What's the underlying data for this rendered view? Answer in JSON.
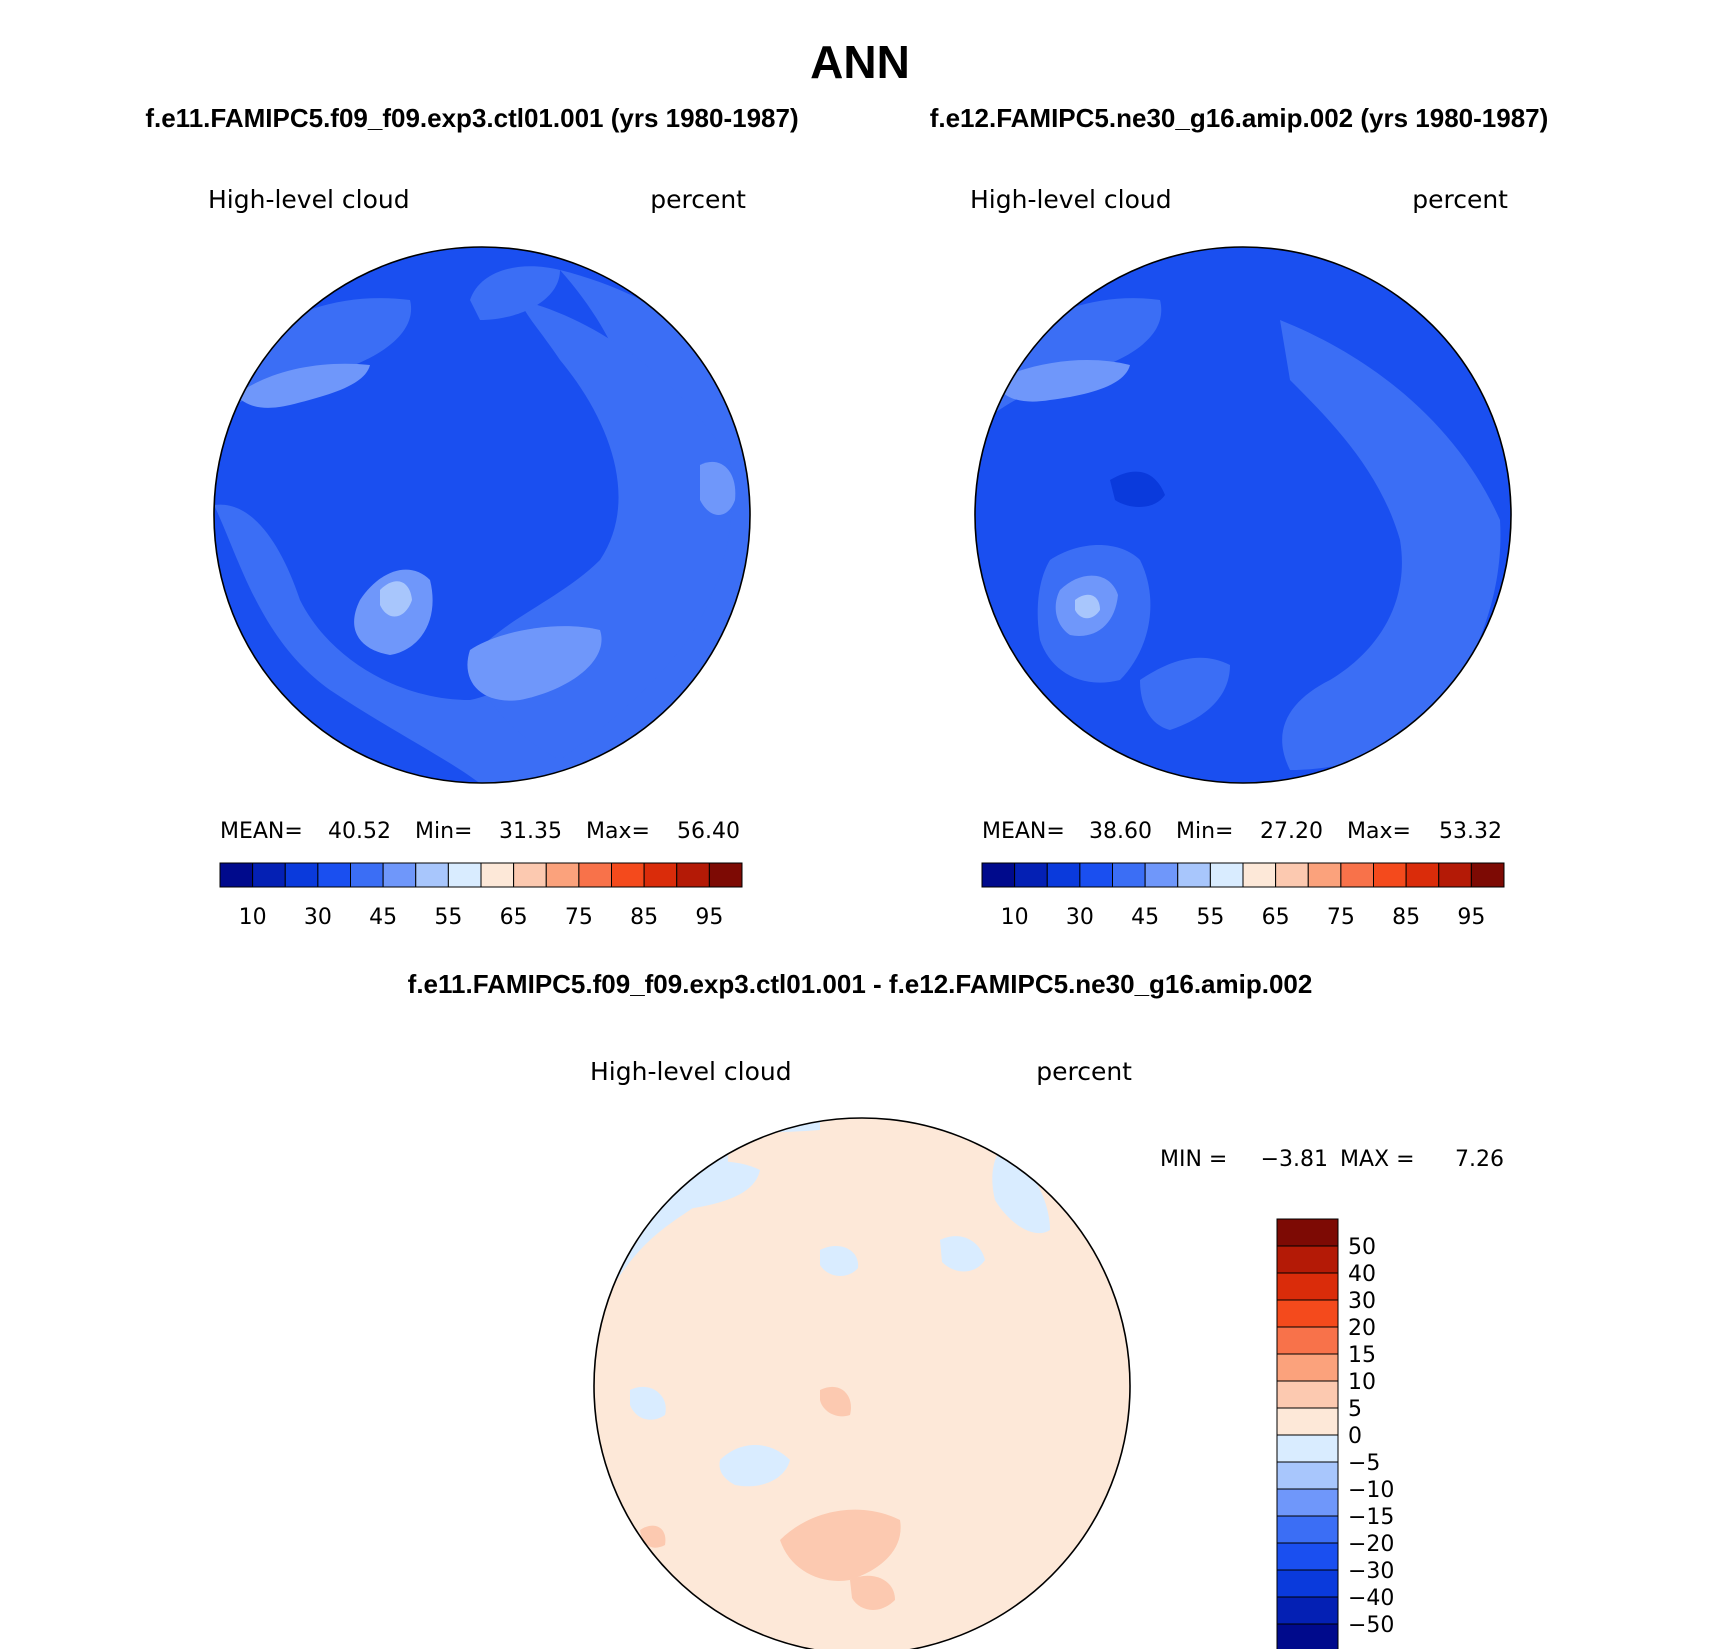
{
  "figure": {
    "title": "ANN",
    "left_caption": "f.e11.FAMIPC5.f09_f09.exp3.ctl01.001 (yrs 1980-1987)",
    "right_caption": "f.e12.FAMIPC5.ne30_g16.amip.002 (yrs 1980-1987)",
    "diff_caption": "f.e11.FAMIPC5.f09_f09.exp3.ctl01.001 - f.e12.FAMIPC5.ne30_g16.amip.002"
  },
  "chart_data": [
    {
      "type": "heatmap",
      "projection": "north polar stereographic",
      "variable": "High-level cloud",
      "units": "percent",
      "stats": {
        "mean_label": "MEAN=",
        "mean": "40.52",
        "min_label": "Min=",
        "min": "31.35",
        "max_label": "Max=",
        "max": "56.40"
      },
      "colorbar": {
        "orientation": "horizontal",
        "tick_labels": [
          "10",
          "30",
          "45",
          "55",
          "65",
          "75",
          "85",
          "95"
        ],
        "colors": [
          "#000a8c",
          "#0420b4",
          "#0a3adc",
          "#1a4ff0",
          "#3b6ef5",
          "#6f97fa",
          "#a8c6fc",
          "#d9ecff",
          "#fde8d8",
          "#fcc9b0",
          "#fba27c",
          "#f8724a",
          "#f44a1c",
          "#da2c0a",
          "#b41a06",
          "#7d0a04"
        ]
      }
    },
    {
      "type": "heatmap",
      "projection": "north polar stereographic",
      "variable": "High-level cloud",
      "units": "percent",
      "stats": {
        "mean_label": "MEAN=",
        "mean": "38.60",
        "min_label": "Min=",
        "min": "27.20",
        "max_label": "Max=",
        "max": "53.32"
      },
      "colorbar": {
        "orientation": "horizontal",
        "tick_labels": [
          "10",
          "30",
          "45",
          "55",
          "65",
          "75",
          "85",
          "95"
        ],
        "colors": [
          "#000a8c",
          "#0420b4",
          "#0a3adc",
          "#1a4ff0",
          "#3b6ef5",
          "#6f97fa",
          "#a8c6fc",
          "#d9ecff",
          "#fde8d8",
          "#fcc9b0",
          "#fba27c",
          "#f8724a",
          "#f44a1c",
          "#da2c0a",
          "#b41a06",
          "#7d0a04"
        ]
      }
    },
    {
      "type": "heatmap",
      "projection": "north polar stereographic",
      "variable": "High-level cloud",
      "units": "percent",
      "stats": {
        "min_label": "MIN =",
        "min": "−3.81",
        "max_label": "MAX =",
        "max": "7.26"
      },
      "colorbar": {
        "orientation": "vertical",
        "tick_labels": [
          "50",
          "40",
          "30",
          "20",
          "15",
          "10",
          "5",
          "0",
          "−5",
          "−10",
          "−15",
          "−20",
          "−30",
          "−40",
          "−50"
        ],
        "colors": [
          "#7d0a04",
          "#b41a06",
          "#da2c0a",
          "#f44a1c",
          "#f8724a",
          "#fba27c",
          "#fcc9b0",
          "#fde8d8",
          "#d9ecff",
          "#a8c6fc",
          "#6f97fa",
          "#3b6ef5",
          "#1a4ff0",
          "#0a3adc",
          "#0420b4",
          "#000a8c"
        ]
      }
    }
  ]
}
